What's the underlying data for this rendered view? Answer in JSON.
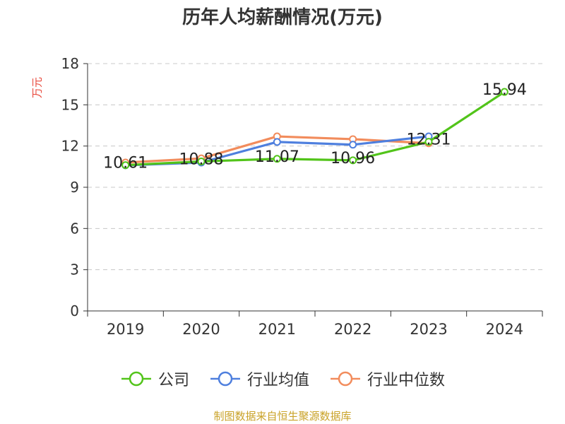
{
  "chart_data": {
    "type": "line",
    "title": "历年人均薪酬情况(万元)",
    "ylabel": "万元",
    "categories": [
      "2019",
      "2020",
      "2021",
      "2022",
      "2023",
      "2024"
    ],
    "ylim": [
      0,
      18
    ],
    "yticks": [
      "0",
      "3",
      "6",
      "9",
      "12",
      "15",
      "18"
    ],
    "grid": true,
    "legend_position": "bottom",
    "series": [
      {
        "name": "公司",
        "color": "#52c41a",
        "values": [
          10.61,
          10.88,
          11.07,
          10.96,
          12.31,
          15.94
        ],
        "labels": [
          "10.61",
          "10.88",
          "11.07",
          "10.96",
          "12.31",
          "15.94"
        ]
      },
      {
        "name": "行业均值",
        "color": "#4e7fde",
        "values": [
          10.6,
          10.8,
          12.3,
          12.1,
          12.7,
          null
        ]
      },
      {
        "name": "行业中位数",
        "color": "#f28c5c",
        "values": [
          10.8,
          11.1,
          12.7,
          12.5,
          12.2,
          null
        ]
      }
    ],
    "source": "制图数据来自恒生聚源数据库"
  }
}
